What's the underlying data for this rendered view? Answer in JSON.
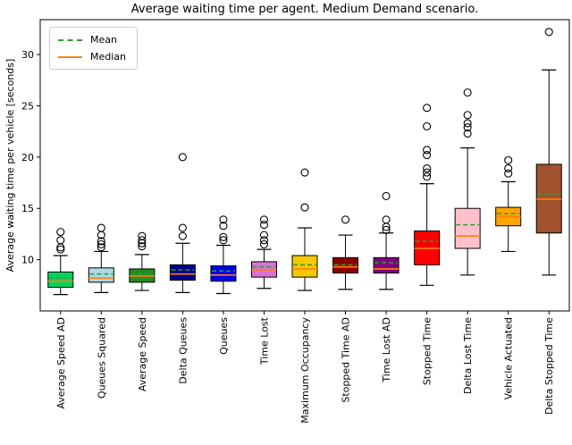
{
  "chart_data": {
    "type": "boxplot",
    "title": "Average waiting time per agent. Medium Demand scenario.",
    "ylabel": "Average waiting time per vehicle [seconds]",
    "xlabel": "",
    "ylim": [
      5.0,
      33.4
    ],
    "yticks": [
      10,
      15,
      20,
      25,
      30
    ],
    "legend_position": "upper left",
    "grid": false,
    "legend": {
      "mean_label": "Mean",
      "median_label": "Median"
    },
    "style_colors": {
      "mean_line": "#2ca02c",
      "median_line": "#ff7f0e",
      "axis": "#000000",
      "outlier_stroke": "#000000",
      "legend_border": "#cccccc"
    },
    "categories": [
      "Average Speed AD",
      "Queues Squared",
      "Average Speed",
      "Delta Queues",
      "Queues",
      "Time Lost",
      "Maximum Occupancy",
      "Stopped Time AD",
      "Time Lost AD",
      "Stopped Time",
      "Delta Lost Time",
      "Vehicle Actuated",
      "Delta Stopped Time"
    ],
    "series": [
      {
        "name": "Average Speed AD",
        "color": "#00d45f",
        "whisker_low": 6.6,
        "q1": 7.3,
        "median": 7.9,
        "mean": 8.2,
        "q3": 8.8,
        "whisker_high": 10.4,
        "outliers": [
          11.0,
          11.2,
          11.9,
          12.7
        ]
      },
      {
        "name": "Queues Squared",
        "color": "#add8e6",
        "whisker_low": 6.8,
        "q1": 7.8,
        "median": 8.2,
        "mean": 8.6,
        "q3": 9.2,
        "whisker_high": 10.8,
        "outliers": [
          11.2,
          11.5,
          11.8,
          12.4,
          13.1
        ]
      },
      {
        "name": "Average Speed",
        "color": "#228b22",
        "whisker_low": 7.0,
        "q1": 7.8,
        "median": 8.4,
        "mean": 8.6,
        "q3": 9.1,
        "whisker_high": 10.5,
        "outliers": [
          11.3,
          11.6,
          11.9,
          12.3
        ]
      },
      {
        "name": "Delta Queues",
        "color": "#00008b",
        "whisker_low": 6.8,
        "q1": 8.0,
        "median": 8.6,
        "mean": 9.0,
        "q3": 9.5,
        "whisker_high": 11.6,
        "outliers": [
          12.3,
          13.1,
          20.0
        ]
      },
      {
        "name": "Queues",
        "color": "#0000ee",
        "whisker_low": 6.7,
        "q1": 7.9,
        "median": 8.5,
        "mean": 8.9,
        "q3": 9.4,
        "whisker_high": 11.4,
        "outliers": [
          11.9,
          12.2,
          13.3,
          13.9
        ]
      },
      {
        "name": "Time Lost",
        "color": "#da70d6",
        "whisker_low": 7.2,
        "q1": 8.3,
        "median": 9.0,
        "mean": 9.3,
        "q3": 9.8,
        "whisker_high": 11.0,
        "outliers": [
          11.5,
          11.9,
          12.4,
          13.4,
          13.9
        ]
      },
      {
        "name": "Maximum Occupancy",
        "color": "#f5c800",
        "whisker_low": 7.0,
        "q1": 8.3,
        "median": 9.1,
        "mean": 9.5,
        "q3": 10.4,
        "whisker_high": 13.1,
        "outliers": [
          15.1,
          18.5
        ]
      },
      {
        "name": "Stopped Time AD",
        "color": "#8b0000",
        "whisker_low": 7.1,
        "q1": 8.7,
        "median": 9.3,
        "mean": 9.5,
        "q3": 10.2,
        "whisker_high": 12.4,
        "outliers": [
          13.9
        ]
      },
      {
        "name": "Time Lost AD",
        "color": "#800080",
        "whisker_low": 7.1,
        "q1": 8.7,
        "median": 9.1,
        "mean": 9.7,
        "q3": 10.2,
        "whisker_high": 12.6,
        "outliers": [
          12.9,
          13.2,
          13.9,
          16.2
        ]
      },
      {
        "name": "Stopped Time",
        "color": "#ff0000",
        "whisker_low": 7.5,
        "q1": 9.5,
        "median": 11.1,
        "mean": 11.8,
        "q3": 12.8,
        "whisker_high": 17.4,
        "outliers": [
          18.1,
          18.5,
          18.9,
          20.2,
          20.7,
          23.0,
          24.8
        ]
      },
      {
        "name": "Delta Lost Time",
        "color": "#ffc0cb",
        "whisker_low": 8.5,
        "q1": 11.1,
        "median": 12.3,
        "mean": 13.4,
        "q3": 15.0,
        "whisker_high": 20.9,
        "outliers": [
          22.3,
          22.9,
          23.3,
          24.1,
          26.3
        ]
      },
      {
        "name": "Vehicle Actuated",
        "color": "#ffa500",
        "whisker_low": 10.8,
        "q1": 13.3,
        "median": 14.2,
        "mean": 14.5,
        "q3": 15.1,
        "whisker_high": 17.6,
        "outliers": [
          18.4,
          18.9,
          19.7
        ]
      },
      {
        "name": "Delta Stopped Time",
        "color": "#a0522d",
        "whisker_low": 8.5,
        "q1": 12.6,
        "median": 15.9,
        "mean": 16.4,
        "q3": 19.3,
        "whisker_high": 28.5,
        "outliers": [
          32.2
        ]
      }
    ]
  }
}
